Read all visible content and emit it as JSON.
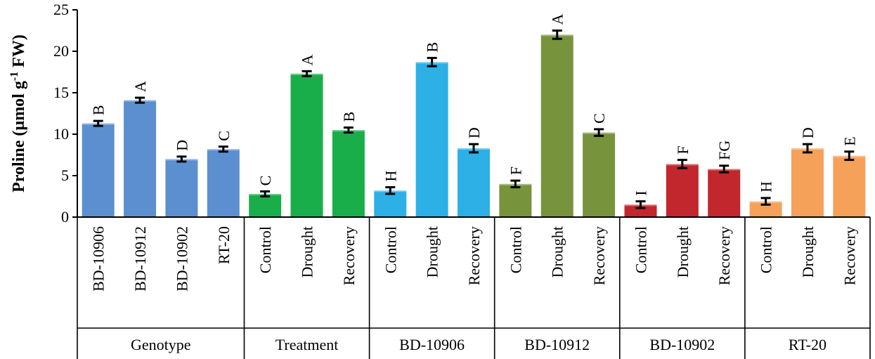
{
  "chart_data": {
    "type": "bar",
    "ylabel": "Proline (µmol g",
    "ylabel_sup": "-1",
    "ylabel_end": " FW)",
    "ylim": [
      0,
      25
    ],
    "yticks": [
      0,
      5,
      10,
      15,
      20,
      25
    ],
    "groups": [
      {
        "name": "Genotype",
        "color": "#5b8fd0",
        "bars": [
          {
            "label": "BD-10906",
            "value": 11.3,
            "error": 0.3,
            "sig": "B"
          },
          {
            "label": "BD-10912",
            "value": 14.1,
            "error": 0.3,
            "sig": "A"
          },
          {
            "label": "BD-10902",
            "value": 7.0,
            "error": 0.3,
            "sig": "D"
          },
          {
            "label": "RT-20",
            "value": 8.2,
            "error": 0.3,
            "sig": "C"
          }
        ]
      },
      {
        "name": "Treatment",
        "color": "#1aae4b",
        "bars": [
          {
            "label": "Control",
            "value": 2.8,
            "error": 0.3,
            "sig": "C"
          },
          {
            "label": "Drought",
            "value": 17.3,
            "error": 0.3,
            "sig": "A"
          },
          {
            "label": "Recovery",
            "value": 10.5,
            "error": 0.3,
            "sig": "B"
          }
        ]
      },
      {
        "name": "BD-10906",
        "color": "#2cb0e6",
        "bars": [
          {
            "label": "Control",
            "value": 3.2,
            "error": 0.4,
            "sig": "H"
          },
          {
            "label": "Drought",
            "value": 18.7,
            "error": 0.5,
            "sig": "B"
          },
          {
            "label": "Recovery",
            "value": 8.3,
            "error": 0.5,
            "sig": "D"
          }
        ]
      },
      {
        "name": "BD-10912",
        "color": "#77933c",
        "bars": [
          {
            "label": "Control",
            "value": 4.0,
            "error": 0.4,
            "sig": "F"
          },
          {
            "label": "Drought",
            "value": 22.0,
            "error": 0.5,
            "sig": "A"
          },
          {
            "label": "Recovery",
            "value": 10.2,
            "error": 0.4,
            "sig": "C"
          }
        ]
      },
      {
        "name": "BD-10902",
        "color": "#c1272d",
        "bars": [
          {
            "label": "Control",
            "value": 1.5,
            "error": 0.4,
            "sig": "I"
          },
          {
            "label": "Drought",
            "value": 6.4,
            "error": 0.5,
            "sig": "F"
          },
          {
            "label": "Recovery",
            "value": 5.8,
            "error": 0.4,
            "sig": "FG"
          }
        ]
      },
      {
        "name": "RT-20",
        "color": "#f6a15a",
        "bars": [
          {
            "label": "Control",
            "value": 1.9,
            "error": 0.4,
            "sig": "H"
          },
          {
            "label": "Drought",
            "value": 8.3,
            "error": 0.5,
            "sig": "D"
          },
          {
            "label": "Recovery",
            "value": 7.4,
            "error": 0.5,
            "sig": "E"
          }
        ]
      }
    ]
  }
}
